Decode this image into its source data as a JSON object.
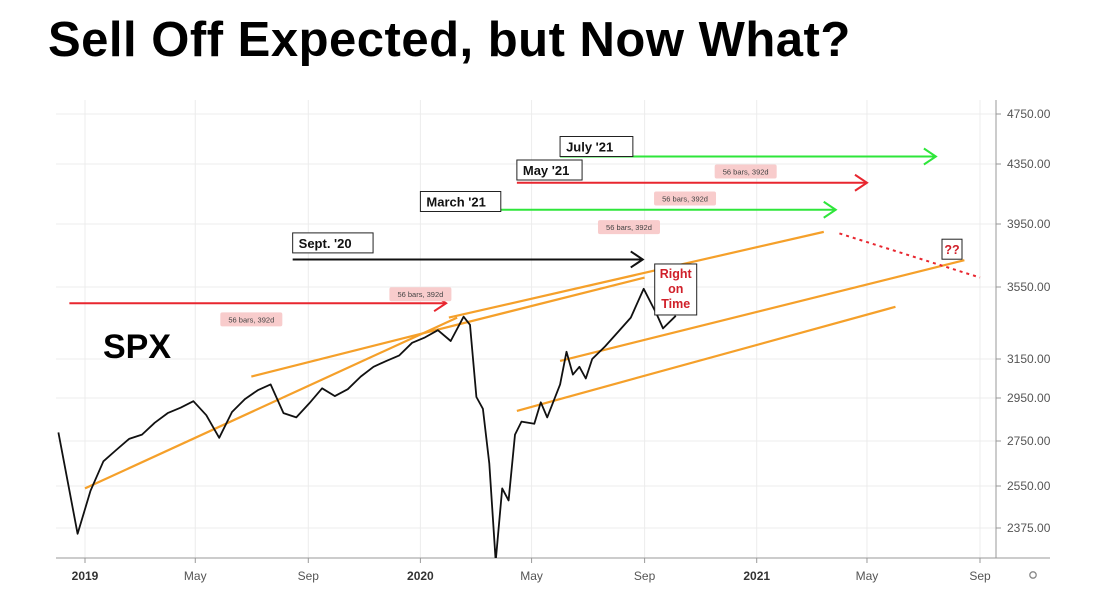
{
  "title": "Sell Off Expected, but Now What?",
  "colors": {
    "price": "#111111",
    "channel": "#f5a02a",
    "red_arrow": "#e8262f",
    "green_arrow": "#2ee63a",
    "black_arrow": "#111111",
    "pill_bg": "#f8cccc",
    "grid": "#ececec"
  },
  "chart_data": {
    "type": "line",
    "symbol_label": "SPX",
    "ylim": [
      2240,
      4800
    ],
    "y_ticks": [
      {
        "value": 4750,
        "label": "4750.00"
      },
      {
        "value": 4350,
        "label": "4350.00"
      },
      {
        "value": 3950,
        "label": "3950.00"
      },
      {
        "value": 3550,
        "label": "3550.00"
      },
      {
        "value": 3150,
        "label": "3150.00"
      },
      {
        "value": 2950,
        "label": "2950.00"
      },
      {
        "value": 2750,
        "label": "2750.00"
      },
      {
        "value": 2550,
        "label": "2550.00"
      },
      {
        "value": 2375,
        "label": "2375.00"
      }
    ],
    "x_ticks": [
      {
        "date": "2019-01-01",
        "label": "2019",
        "bold": true
      },
      {
        "date": "2019-05-01",
        "label": "May"
      },
      {
        "date": "2019-09-01",
        "label": "Sep"
      },
      {
        "date": "2020-01-01",
        "label": "2020",
        "bold": true
      },
      {
        "date": "2020-05-01",
        "label": "May"
      },
      {
        "date": "2020-09-01",
        "label": "Sep"
      },
      {
        "date": "2021-01-01",
        "label": "2021",
        "bold": true
      },
      {
        "date": "2021-05-01",
        "label": "May"
      },
      {
        "date": "2021-09-01",
        "label": "Sep"
      }
    ],
    "series": [
      {
        "points": [
          [
            "2018-12-03",
            2790
          ],
          [
            "2018-12-24",
            2351
          ],
          [
            "2019-01-07",
            2530
          ],
          [
            "2019-01-21",
            2660
          ],
          [
            "2019-02-04",
            2710
          ],
          [
            "2019-02-18",
            2760
          ],
          [
            "2019-03-04",
            2780
          ],
          [
            "2019-03-18",
            2835
          ],
          [
            "2019-04-01",
            2880
          ],
          [
            "2019-04-15",
            2905
          ],
          [
            "2019-04-29",
            2935
          ],
          [
            "2019-05-13",
            2870
          ],
          [
            "2019-05-27",
            2765
          ],
          [
            "2019-06-10",
            2885
          ],
          [
            "2019-06-24",
            2945
          ],
          [
            "2019-07-08",
            2990
          ],
          [
            "2019-07-22",
            3020
          ],
          [
            "2019-08-05",
            2880
          ],
          [
            "2019-08-19",
            2860
          ],
          [
            "2019-09-02",
            2925
          ],
          [
            "2019-09-16",
            3000
          ],
          [
            "2019-09-30",
            2960
          ],
          [
            "2019-10-14",
            2995
          ],
          [
            "2019-10-28",
            3060
          ],
          [
            "2019-11-11",
            3110
          ],
          [
            "2019-11-25",
            3140
          ],
          [
            "2019-12-09",
            3170
          ],
          [
            "2019-12-23",
            3240
          ],
          [
            "2020-01-06",
            3270
          ],
          [
            "2020-01-20",
            3310
          ],
          [
            "2020-02-03",
            3250
          ],
          [
            "2020-02-17",
            3385
          ],
          [
            "2020-02-24",
            3340
          ],
          [
            "2020-03-02",
            2955
          ],
          [
            "2020-03-09",
            2900
          ],
          [
            "2020-03-16",
            2650
          ],
          [
            "2020-03-23",
            2237
          ],
          [
            "2020-03-30",
            2540
          ],
          [
            "2020-04-06",
            2490
          ],
          [
            "2020-04-13",
            2780
          ],
          [
            "2020-04-20",
            2840
          ],
          [
            "2020-05-04",
            2830
          ],
          [
            "2020-05-11",
            2930
          ],
          [
            "2020-05-18",
            2860
          ],
          [
            "2020-06-01",
            3020
          ],
          [
            "2020-06-08",
            3190
          ],
          [
            "2020-06-15",
            3070
          ],
          [
            "2020-06-22",
            3110
          ],
          [
            "2020-06-29",
            3050
          ],
          [
            "2020-07-06",
            3150
          ],
          [
            "2020-07-20",
            3220
          ],
          [
            "2020-08-03",
            3300
          ],
          [
            "2020-08-17",
            3380
          ],
          [
            "2020-08-31",
            3540
          ],
          [
            "2020-09-14",
            3400
          ],
          [
            "2020-09-21",
            3320
          ],
          [
            "2020-10-05",
            3390
          ]
        ]
      }
    ],
    "channels": [
      [
        [
          "2019-01-01",
          2540
        ],
        [
          "2020-02-10",
          3380
        ]
      ],
      [
        [
          "2019-07-01",
          3060
        ],
        [
          "2020-09-01",
          3610
        ]
      ],
      [
        [
          "2020-02-01",
          3380
        ],
        [
          "2021-03-15",
          3900
        ]
      ],
      [
        [
          "2020-06-01",
          3140
        ],
        [
          "2021-08-15",
          3720
        ]
      ],
      [
        [
          "2020-04-15",
          2890
        ],
        [
          "2021-06-01",
          3440
        ]
      ]
    ],
    "projection": {
      "from": [
        "2021-04-01",
        3890
      ],
      "to": [
        "2021-09-01",
        3610
      ],
      "label": "??"
    },
    "bar_count_arrows": [
      {
        "color": "red",
        "from": [
          "2018-12-15",
          3460
        ],
        "to": [
          "2020-01-29",
          3460
        ],
        "note": "56 bars, 392d",
        "note_at": [
          "2019-07-01",
          3370
        ]
      },
      {
        "label": "Sept. '20",
        "color": "black",
        "from": [
          "2019-08-15",
          3725
        ],
        "to": [
          "2020-08-30",
          3725
        ],
        "label_at": [
          "2019-08-15",
          3830
        ]
      },
      {
        "color": "red",
        "from": [
          "2020-01-15",
          3520
        ],
        "note": "56 bars, 392d",
        "note_at": [
          "2020-01-01",
          3510
        ]
      },
      {
        "label": "March '21",
        "color": "green",
        "from": [
          "2020-02-01",
          4045
        ],
        "to": [
          "2021-03-28",
          4045
        ],
        "label_at": [
          "2020-01-01",
          4100
        ],
        "note": "56 bars, 392d",
        "note_at": [
          "2020-08-15",
          3930
        ]
      },
      {
        "label": "May '21",
        "color": "red",
        "from": [
          "2020-04-15",
          4225
        ],
        "to": [
          "2021-05-01",
          4225
        ],
        "label_at": [
          "2020-04-15",
          4310
        ],
        "note": "56 bars, 392d",
        "note_at": [
          "2020-10-15",
          4120
        ]
      },
      {
        "label": "July '21",
        "color": "green",
        "from": [
          "2020-06-01",
          4410
        ],
        "to": [
          "2021-07-15",
          4410
        ],
        "label_at": [
          "2020-06-01",
          4490
        ],
        "note": "56 bars, 392d",
        "note_at": [
          "2020-12-20",
          4300
        ]
      }
    ],
    "annotations": [
      {
        "text": [
          "Right",
          "on",
          "Time"
        ],
        "at": [
          "2020-09-12",
          3620
        ]
      }
    ]
  }
}
